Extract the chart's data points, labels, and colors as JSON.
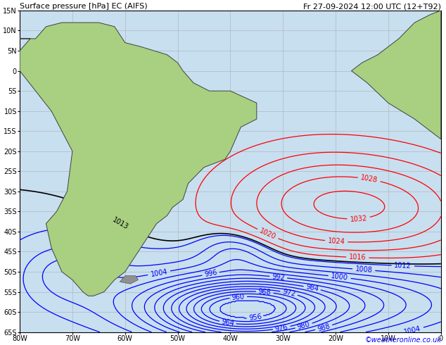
{
  "title_left": "Surface pressure [hPa] EC (AIFS)",
  "title_right": "Fr 27-09-2024 12:00 UTC (12+T92)",
  "copyright": "©weatheronline.co.uk",
  "background_color": "#c8dff0",
  "land_color": "#a8d080",
  "grid_color": "#b0b8c0",
  "ylim": [
    -65,
    15
  ],
  "xlim": [
    -80,
    0
  ],
  "figsize": [
    6.34,
    4.9
  ],
  "dpi": 100,
  "contour_interval": 4,
  "pressure_min": 956,
  "pressure_max": 1032,
  "label_fontsize": 7,
  "axis_label_fontsize": 7,
  "title_fontsize": 8
}
